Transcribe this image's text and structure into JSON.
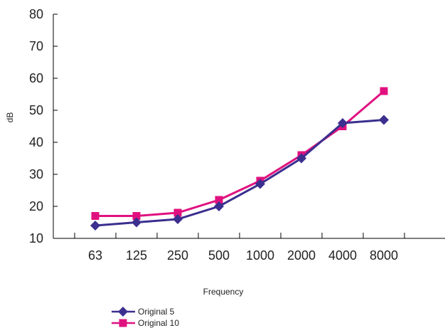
{
  "chart_data": {
    "type": "line",
    "categories": [
      "63",
      "125",
      "250",
      "500",
      "1000",
      "2000",
      "4000",
      "8000"
    ],
    "series": [
      {
        "name": "Original 5",
        "values": [
          14,
          15,
          16,
          20,
          27,
          35,
          46,
          47
        ],
        "color": "#3b2f8f",
        "marker": "diamond"
      },
      {
        "name": "Original 10",
        "values": [
          17,
          17,
          18,
          22,
          28,
          36,
          45,
          56
        ],
        "color": "#e0117f",
        "marker": "square"
      }
    ],
    "title": "",
    "xlabel": "Frequency",
    "ylabel": "dB",
    "ylim": [
      10,
      80
    ],
    "yticks": [
      10,
      20,
      30,
      40,
      50,
      60,
      70,
      80
    ],
    "grid": false,
    "legend_position": "bottom-left"
  }
}
